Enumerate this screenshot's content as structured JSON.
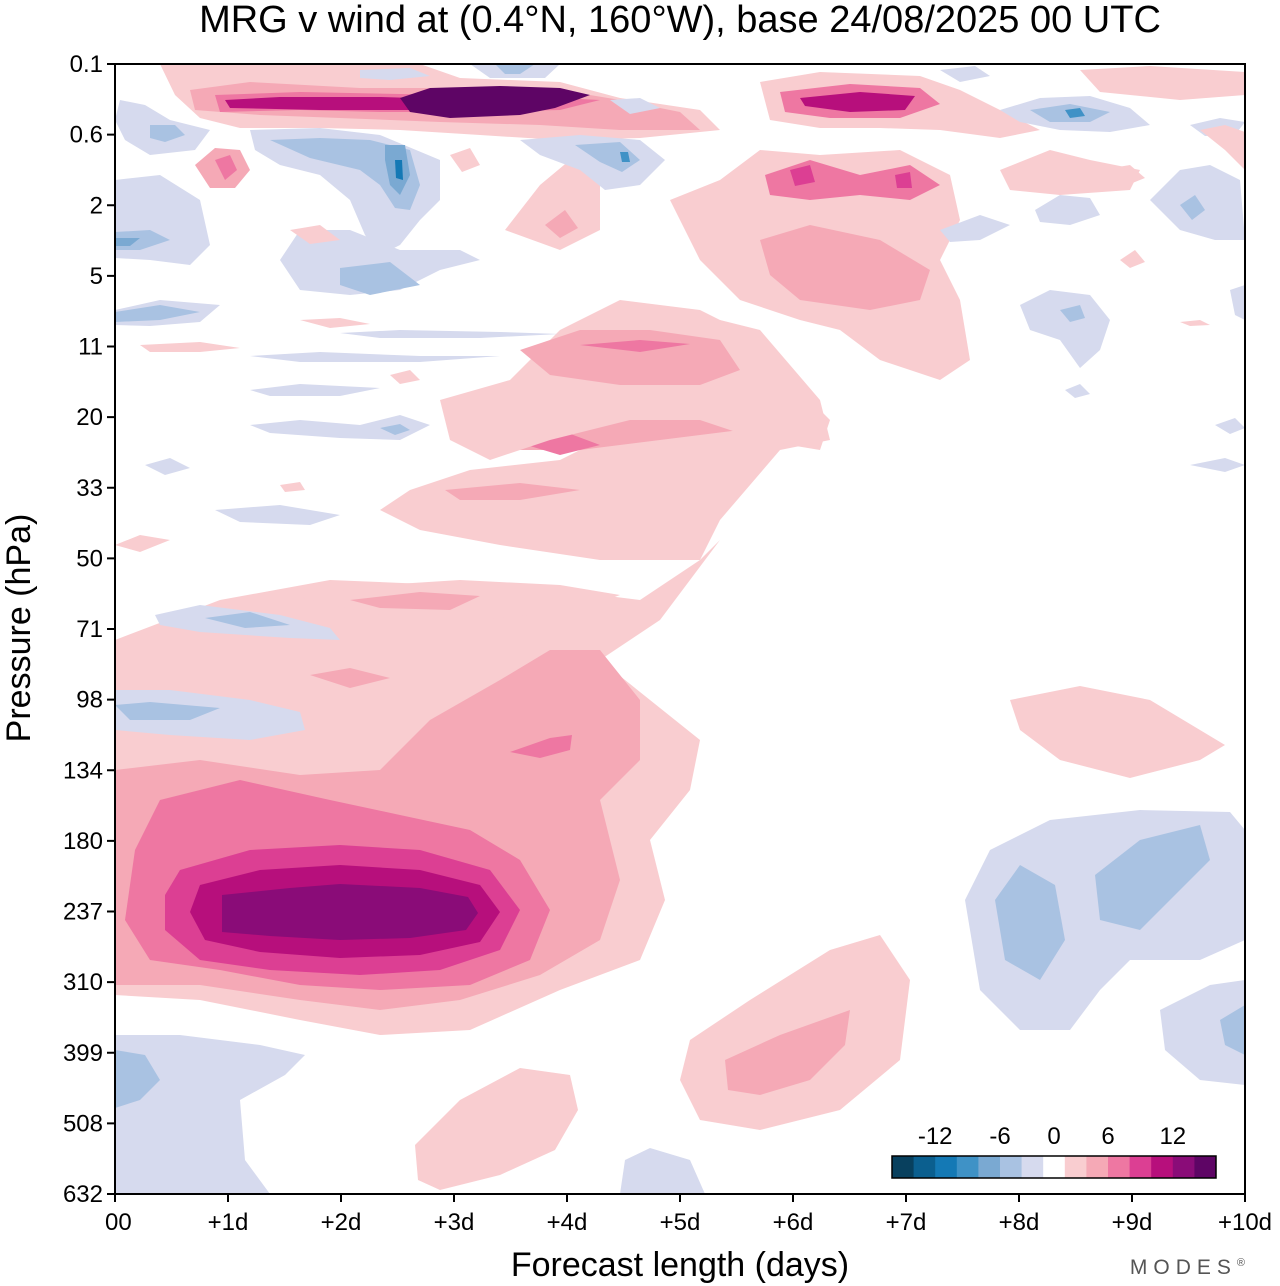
{
  "chart_data": {
    "type": "heatmap",
    "title": "MRG v wind at (0.4°N, 160°W),  base 24/08/2025  00 UTC",
    "xlabel": "Forecast length (days)",
    "ylabel": "Pressure (hPa)",
    "x_ticks": [
      "00",
      "+1d",
      "+2d",
      "+3d",
      "+4d",
      "+5d",
      "+6d",
      "+7d",
      "+8d",
      "+9d",
      "+10d"
    ],
    "y_ticks": [
      "0.1",
      "0.6",
      "2",
      "5",
      "11",
      "20",
      "33",
      "50",
      "71",
      "98",
      "134",
      "180",
      "237",
      "310",
      "399",
      "508",
      "632"
    ],
    "xlim_days": [
      0,
      10
    ],
    "colorbar": {
      "labels": [
        "-12",
        "-6",
        "0",
        "6",
        "12"
      ],
      "levels": [
        -14,
        -12,
        -10,
        -8,
        -6,
        -4,
        -2,
        2,
        4,
        6,
        8,
        10,
        12,
        14
      ],
      "colors": [
        "#08405e",
        "#0b5f8f",
        "#1479b5",
        "#3f92c6",
        "#7aa9d2",
        "#a9c2e2",
        "#d6daee",
        "#ffffff",
        "#f9cdd0",
        "#f5a9b6",
        "#ee77a2",
        "#dc3f93",
        "#b70f7c",
        "#8a0c78",
        "#5e0565"
      ]
    },
    "features": [
      {
        "name": "lower-strat-positive-max",
        "day": 2.0,
        "pressure_hPa": 237,
        "value": 16
      },
      {
        "name": "upper-strat-positive-max",
        "day": 3.3,
        "pressure_hPa": 0.3,
        "value": 16
      },
      {
        "name": "day7-upper-positive",
        "day": 7.0,
        "pressure_hPa": 0.3,
        "value": 14
      },
      {
        "name": "upper-negative-min",
        "day": 2.6,
        "pressure_hPa": 1.5,
        "value": -8
      },
      {
        "name": "lower-negative-region",
        "day": 8.5,
        "pressure_hPa": 237,
        "value": -6
      }
    ]
  },
  "colors": {
    "background": "#ffffff",
    "axis": "#000000"
  },
  "brand": {
    "text": "MODES",
    "mark": "®"
  }
}
